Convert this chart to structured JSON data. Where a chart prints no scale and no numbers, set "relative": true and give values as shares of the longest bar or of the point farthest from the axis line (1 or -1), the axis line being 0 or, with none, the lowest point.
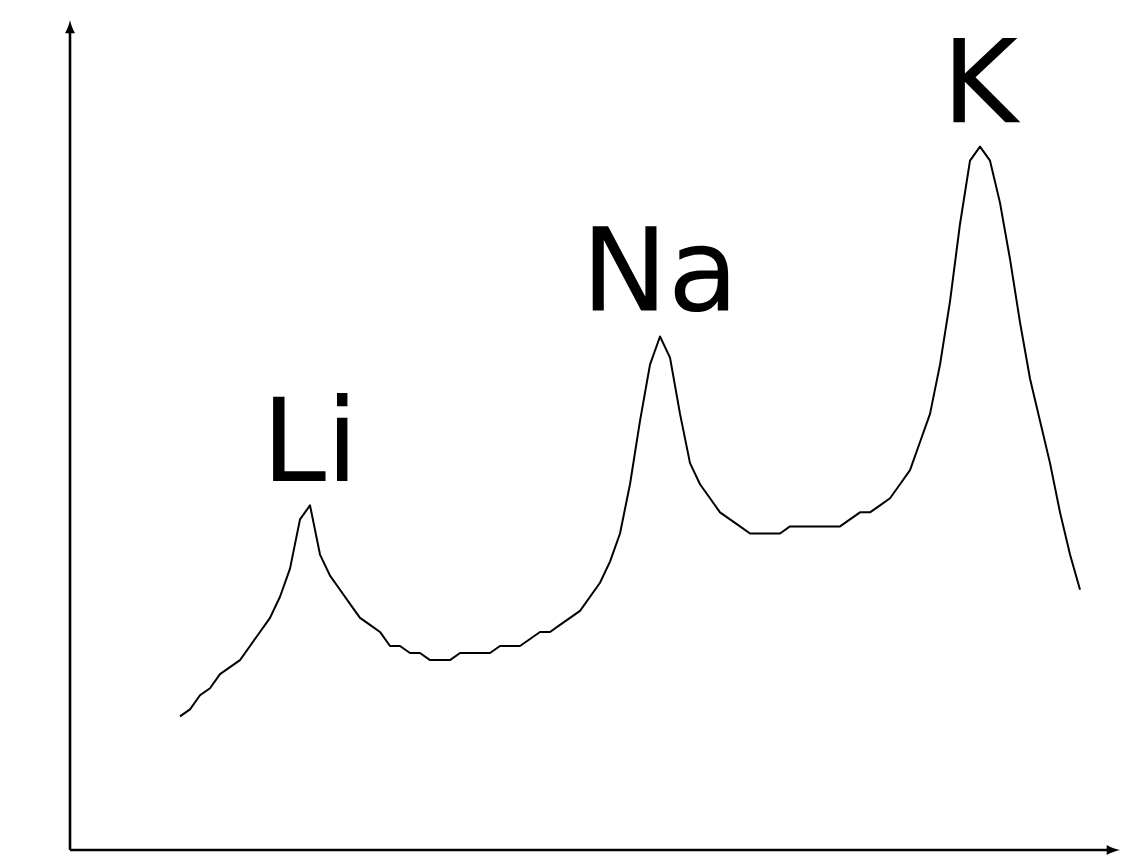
{
  "chart_data": {
    "type": "line",
    "relative": true,
    "color": "#000000",
    "categories": [
      null,
      null,
      null,
      null,
      null,
      null,
      null,
      null,
      null,
      null,
      null,
      null,
      null,
      null,
      null,
      null,
      null,
      null,
      null,
      null,
      null,
      null,
      null,
      null,
      null,
      null,
      null,
      null,
      null,
      null,
      null,
      null,
      null,
      null,
      null,
      null,
      null,
      null,
      null,
      null,
      null,
      null,
      null,
      null,
      null,
      null,
      null,
      null,
      null,
      null,
      null,
      null,
      null,
      null,
      null,
      null,
      null,
      null,
      null,
      null,
      null,
      null,
      null,
      null,
      null,
      null,
      null,
      null,
      null,
      null,
      null,
      null,
      null,
      null,
      null,
      null,
      null,
      null,
      null,
      null,
      null,
      null,
      null,
      null,
      null,
      null,
      null,
      null,
      null,
      null,
      null
    ],
    "values": [
      0.19,
      0.2,
      0.22,
      0.23,
      0.25,
      0.26,
      0.27,
      0.29,
      0.31,
      0.33,
      0.36,
      0.4,
      0.47,
      0.49,
      0.42,
      0.39,
      0.37,
      0.35,
      0.33,
      0.32,
      0.31,
      0.29,
      0.29,
      0.28,
      0.28,
      0.27,
      0.27,
      0.27,
      0.28,
      0.28,
      0.28,
      0.28,
      0.29,
      0.29,
      0.29,
      0.3,
      0.31,
      0.31,
      0.32,
      0.33,
      0.34,
      0.36,
      0.38,
      0.41,
      0.45,
      0.52,
      0.61,
      0.69,
      0.73,
      0.7,
      0.62,
      0.55,
      0.52,
      0.5,
      0.48,
      0.47,
      0.46,
      0.45,
      0.45,
      0.45,
      0.45,
      0.46,
      0.46,
      0.46,
      0.46,
      0.46,
      0.46,
      0.47,
      0.48,
      0.48,
      0.49,
      0.5,
      0.52,
      0.54,
      0.58,
      0.62,
      0.69,
      0.78,
      0.89,
      0.98,
      1,
      0.98,
      0.92,
      0.84,
      0.75,
      0.67,
      0.61,
      0.55,
      0.48,
      0.42,
      0.37
    ],
    "annotations": [
      "Li",
      "Na",
      "K"
    ]
  }
}
